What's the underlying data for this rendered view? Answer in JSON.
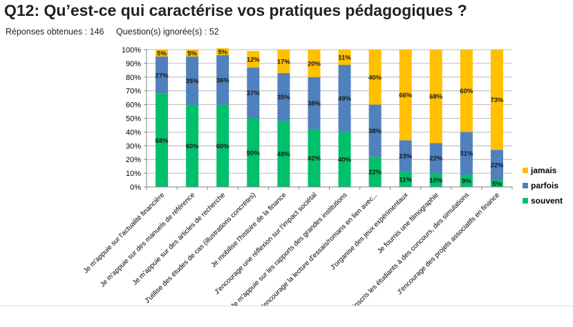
{
  "title": "Q12: Qu’est-ce qui caractérise vos pratiques pédagogiques ?",
  "stats": {
    "responses": "Réponses obtenues : 146",
    "skipped": "Question(s) ignorée(s) : 52"
  },
  "chart_data": {
    "type": "bar",
    "stacked": true,
    "ylim": [
      0,
      100
    ],
    "y_ticks": [
      "0%",
      "10%",
      "20%",
      "30%",
      "40%",
      "50%",
      "60%",
      "70%",
      "80%",
      "90%",
      "100%"
    ],
    "grid": true,
    "legend_position": "right",
    "categories": [
      "Je m'appuie sur l'actualité financière",
      "Je m'appuie sur des manuels de référence",
      "Je m'appuie sur des articles de recherche",
      "J'utilise des études de cas (illustrations concrètes)",
      "Je mobilise l'histoire de la finance",
      "J'encourage une réflexion sur l'impact sociétal",
      "Je m'appuie sur les rapports des grandes institutions",
      "J'encourage la lecture d'essais/romans en lien avec...",
      "J'organise des jeux expérimentaux",
      "Je fournis une filmographie",
      "J'inscris les étudiants à des concours, des simulations",
      "J'encourage des projets associatifs en finance"
    ],
    "series": [
      {
        "name": "souvent",
        "color": "#00c06b",
        "values": [
          68,
          60,
          60,
          50,
          48,
          42,
          40,
          22,
          11,
          10,
          9,
          5
        ],
        "labels": [
          "68%",
          "60%",
          "60%",
          "50%",
          "48%",
          "42%",
          "40%",
          "22%",
          "11%",
          "10%",
          "9%",
          "5%"
        ]
      },
      {
        "name": "parfois",
        "color": "#4f81bd",
        "values": [
          27,
          35,
          36,
          37,
          35,
          38,
          49,
          38,
          23,
          22,
          31,
          22
        ],
        "labels": [
          "27%",
          "35%",
          "36%",
          "37%",
          "35%",
          "38%",
          "49%",
          "38%",
          "23%",
          "22%",
          "31%",
          "22%"
        ]
      },
      {
        "name": "jamais",
        "color": "#ffc000",
        "values": [
          5,
          5,
          5,
          12,
          17,
          20,
          11,
          40,
          66,
          68,
          60,
          73
        ],
        "labels": [
          "5%",
          "5%",
          "5%",
          "12%",
          "17%",
          "20%",
          "11%",
          "40%",
          "66%",
          "68%",
          "60%",
          "73%"
        ]
      }
    ],
    "legend_order": [
      "jamais",
      "parfois",
      "souvent"
    ]
  }
}
